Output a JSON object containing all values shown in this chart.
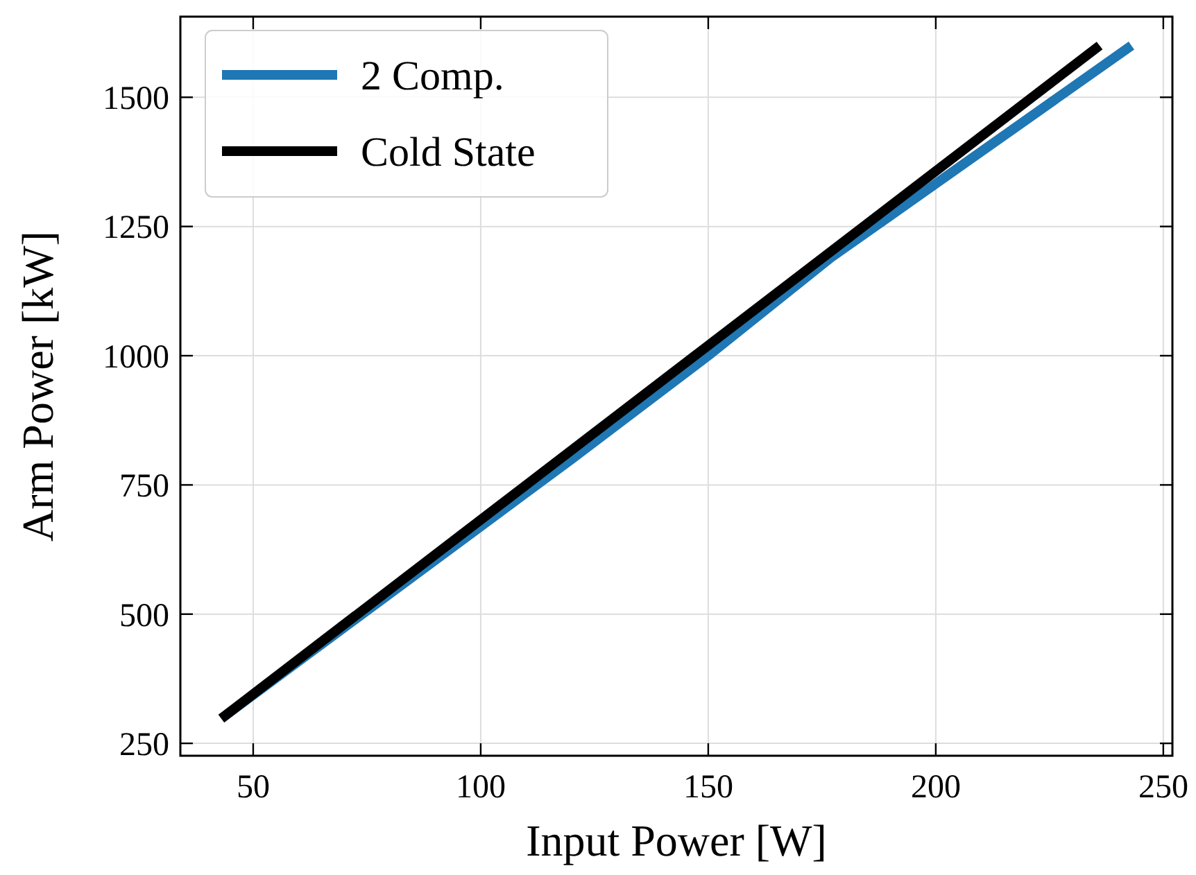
{
  "chart_data": {
    "type": "line",
    "xlabel": "Input Power [W]",
    "ylabel": "Arm Power [kW]",
    "xlim": [
      34,
      252
    ],
    "ylim": [
      226,
      1656
    ],
    "xticks": [
      50,
      100,
      150,
      200,
      250
    ],
    "yticks": [
      250,
      500,
      750,
      1000,
      1250,
      1500
    ],
    "grid": true,
    "legend": "top left",
    "line_style": "solid",
    "series": [
      {
        "name": "2 Comp.",
        "color": "#1f77b4",
        "x": [
          43,
          120,
          150,
          177,
          243
        ],
        "values": [
          298,
          800,
          1000,
          1190,
          1600
        ]
      },
      {
        "name": "Cold State",
        "color": "#000000",
        "x": [
          43,
          236
        ],
        "values": [
          298,
          1600
        ]
      }
    ]
  }
}
